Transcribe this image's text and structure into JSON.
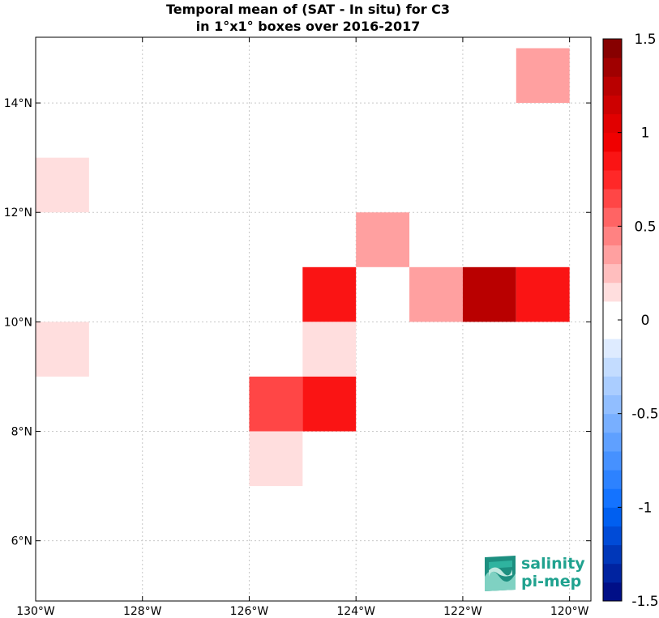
{
  "chart_data": {
    "type": "heatmap",
    "title": [
      "Temporal mean of (SAT - In situ) for C3",
      "in 1°x1° boxes over 2016-2017"
    ],
    "x_range": [
      -130,
      -119.6
    ],
    "y_range": [
      4.9,
      15.2
    ],
    "grid": true,
    "x_ticks": [
      {
        "value": -130,
        "label": "130°W"
      },
      {
        "value": -128,
        "label": "128°W"
      },
      {
        "value": -126,
        "label": "126°W"
      },
      {
        "value": -124,
        "label": "124°W"
      },
      {
        "value": -122,
        "label": "122°W"
      },
      {
        "value": -120,
        "label": "120°W"
      }
    ],
    "y_ticks": [
      {
        "value": 6,
        "label": "6°N"
      },
      {
        "value": 8,
        "label": "8°N"
      },
      {
        "value": 10,
        "label": "10°N"
      },
      {
        "value": 12,
        "label": "12°N"
      },
      {
        "value": 14,
        "label": "14°N"
      }
    ],
    "cells": [
      {
        "lon": -121,
        "lat": 14,
        "value": 0.3
      },
      {
        "lon": -130,
        "lat": 12,
        "value": 0.15
      },
      {
        "lon": -124,
        "lat": 11,
        "value": 0.3
      },
      {
        "lon": -125,
        "lat": 10,
        "value": 0.85
      },
      {
        "lon": -123,
        "lat": 10,
        "value": 0.3
      },
      {
        "lon": -122,
        "lat": 10,
        "value": 1.25
      },
      {
        "lon": -121,
        "lat": 10,
        "value": 0.85
      },
      {
        "lon": -130,
        "lat": 9,
        "value": 0.15
      },
      {
        "lon": -125,
        "lat": 9,
        "value": 0.15
      },
      {
        "lon": -126,
        "lat": 8,
        "value": 0.65
      },
      {
        "lon": -125,
        "lat": 8,
        "value": 0.8
      },
      {
        "lon": -126,
        "lat": 7,
        "value": 0.15
      }
    ],
    "colorbar": {
      "range": [
        -1.5,
        1.5
      ],
      "levels": 30,
      "ticks": [
        {
          "value": 1.5,
          "label": "1.5"
        },
        {
          "value": 1,
          "label": "1"
        },
        {
          "value": 0.5,
          "label": "0.5"
        },
        {
          "value": 0,
          "label": "0"
        },
        {
          "value": -0.5,
          "label": "-0.5"
        },
        {
          "value": -1,
          "label": "-1"
        },
        {
          "value": -1.5,
          "label": "-1.5"
        }
      ]
    }
  },
  "logo": {
    "line1": "salinity",
    "line2": "pi-mep",
    "color": "#20a28f"
  }
}
